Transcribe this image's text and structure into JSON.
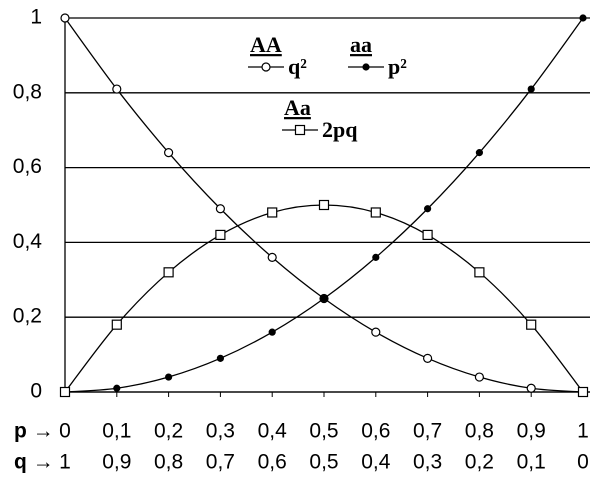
{
  "chart_data": {
    "type": "line",
    "x": [
      0,
      0.1,
      0.2,
      0.3,
      0.4,
      0.5,
      0.6,
      0.7,
      0.8,
      0.9,
      1
    ],
    "xlim": [
      0,
      1
    ],
    "xticks": [
      0,
      {
        "value": 0.1,
        "label": "0,1"
      },
      {
        "value": 0.2,
        "label": "0,2"
      },
      {
        "value": 0.3,
        "label": "0,3"
      },
      {
        "value": 0.4,
        "label": "0,4"
      },
      {
        "value": 0.5,
        "label": "0,5"
      },
      {
        "value": 0.6,
        "label": "0,6"
      },
      {
        "value": 0.7,
        "label": "0,7"
      },
      {
        "value": 0.8,
        "label": "0,8"
      },
      {
        "value": 0.9,
        "label": "0,9"
      },
      1
    ],
    "x_label": "p →",
    "x2lim": [
      1,
      0
    ],
    "x2ticks": [
      1,
      {
        "value": 0.9,
        "label": "0,9"
      },
      {
        "value": 0.8,
        "label": "0,8"
      },
      {
        "value": 0.7,
        "label": "0,7"
      },
      {
        "value": 0.6,
        "label": "0,6"
      },
      {
        "value": 0.5,
        "label": "0,5"
      },
      {
        "value": 0.4,
        "label": "0,4"
      },
      {
        "value": 0.3,
        "label": "0,3"
      },
      {
        "value": 0.2,
        "label": "0,2"
      },
      {
        "value": 0.1,
        "label": "0,1"
      },
      0
    ],
    "x2_label": "q →",
    "ylim": [
      0,
      1
    ],
    "yticks": [
      0,
      {
        "value": 0.2,
        "label": "0,2"
      },
      {
        "value": 0.4,
        "label": "0,4"
      },
      {
        "value": 0.6,
        "label": "0,6"
      },
      {
        "value": 0.8,
        "label": "0,8"
      },
      1
    ],
    "grid": true,
    "series": [
      {
        "name": "AA",
        "label": "q²",
        "marker": "circle",
        "color": "#000000",
        "values": [
          1,
          0.81,
          0.64,
          0.49,
          0.36,
          0.25,
          0.16,
          0.09,
          0.04,
          0.01,
          0
        ]
      },
      {
        "name": "aa",
        "label": "p²",
        "marker": "dot",
        "color": "#000000",
        "values": [
          0,
          0.01,
          0.04,
          0.09,
          0.16,
          0.25,
          0.36,
          0.49,
          0.64,
          0.81,
          1
        ]
      },
      {
        "name": "Aa",
        "label": "2pq",
        "marker": "square",
        "color": "#000000",
        "values": [
          0,
          0.18,
          0.32,
          0.42,
          0.48,
          0.5,
          0.48,
          0.42,
          0.32,
          0.18,
          0
        ]
      }
    ]
  }
}
